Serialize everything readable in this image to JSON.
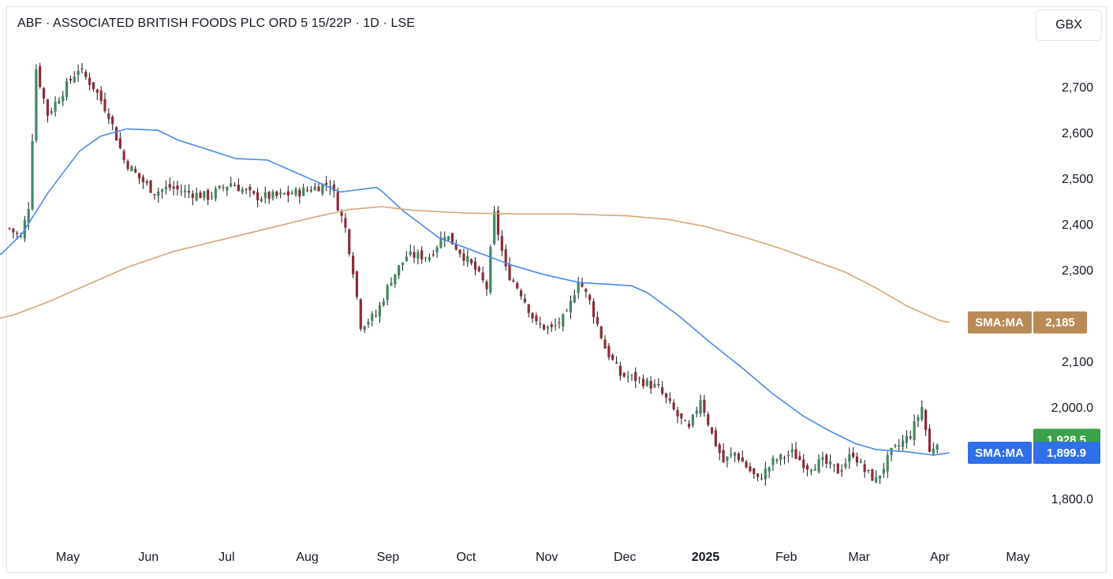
{
  "header": {
    "title": "ABF · ASSOCIATED BRITISH FOODS PLC ORD 5 15/22P · 1D · LSE",
    "currency_button": "GBX"
  },
  "colors": {
    "up": "#3f8a5f",
    "down": "#8b2d36",
    "wick": "#131722",
    "sma_fast": "#4a8af0",
    "sma_slow": "#d4a774",
    "last_price": "#3aa24a",
    "sma_fast_badge": "#2f6fe8",
    "sma_slow_badge": "#b98a56"
  },
  "badges": {
    "sma_slow": {
      "label": "SMA:MA",
      "value": "2,185"
    },
    "last_price": {
      "value": "1,928.5"
    },
    "sma_fast": {
      "label": "SMA:MA",
      "value": "1,899.9"
    }
  },
  "chart_data": {
    "type": "candlestick",
    "title": "ABF · ASSOCIATED BRITISH FOODS PLC ORD 5 15/22P · 1D · LSE",
    "currency": "GBX",
    "ylim": [
      1715,
      2815
    ],
    "y_ticks": [
      {
        "value": 1800,
        "label": "1,800.0"
      },
      {
        "value": 1900,
        "label": ""
      },
      {
        "value": 2000,
        "label": "2,000.0"
      },
      {
        "value": 2100,
        "label": "2,100"
      },
      {
        "value": 2200,
        "label": ""
      },
      {
        "value": 2300,
        "label": "2,300"
      },
      {
        "value": 2400,
        "label": "2,400"
      },
      {
        "value": 2500,
        "label": "2,500"
      },
      {
        "value": 2600,
        "label": "2,600"
      },
      {
        "value": 2700,
        "label": "2,700"
      }
    ],
    "x_ticks": [
      {
        "label": "May",
        "t": 15,
        "bold": false
      },
      {
        "label": "Jun",
        "t": 46,
        "bold": false
      },
      {
        "label": "Jul",
        "t": 76,
        "bold": false
      },
      {
        "label": "Aug",
        "t": 107,
        "bold": false
      },
      {
        "label": "Sep",
        "t": 138,
        "bold": false
      },
      {
        "label": "Oct",
        "t": 168,
        "bold": false
      },
      {
        "label": "Nov",
        "t": 199,
        "bold": false
      },
      {
        "label": "Dec",
        "t": 229,
        "bold": false
      },
      {
        "label": "2025",
        "t": 260,
        "bold": true
      },
      {
        "label": "Feb",
        "t": 291,
        "bold": false
      },
      {
        "label": "Mar",
        "t": 319,
        "bold": false
      },
      {
        "label": "Apr",
        "t": 350,
        "bold": false
      },
      {
        "label": "May",
        "t": 380,
        "bold": false
      }
    ],
    "last_price": 1928.5,
    "series": [
      {
        "name": "SMA:MA",
        "style": "fast",
        "last": 1899.9,
        "points": [
          [
            -16,
            2320
          ],
          [
            -8,
            2335
          ],
          [
            0,
            2380
          ],
          [
            10,
            2470
          ],
          [
            22,
            2560
          ],
          [
            30,
            2592
          ],
          [
            40,
            2608
          ],
          [
            52,
            2605
          ],
          [
            60,
            2583
          ],
          [
            70,
            2565
          ],
          [
            82,
            2543
          ],
          [
            94,
            2540
          ],
          [
            100,
            2525
          ],
          [
            110,
            2500
          ],
          [
            122,
            2470
          ],
          [
            136,
            2480
          ],
          [
            138,
            2472
          ],
          [
            146,
            2430
          ],
          [
            160,
            2370
          ],
          [
            174,
            2340
          ],
          [
            188,
            2310
          ],
          [
            200,
            2290
          ],
          [
            214,
            2272
          ],
          [
            226,
            2268
          ],
          [
            234,
            2265
          ],
          [
            240,
            2250
          ],
          [
            252,
            2200
          ],
          [
            264,
            2142
          ],
          [
            276,
            2088
          ],
          [
            288,
            2030
          ],
          [
            300,
            1980
          ],
          [
            310,
            1948
          ],
          [
            320,
            1920
          ],
          [
            328,
            1907
          ],
          [
            340,
            1902
          ],
          [
            350,
            1895
          ],
          [
            356,
            1899.9
          ]
        ]
      },
      {
        "name": "SMA:MA",
        "style": "slow",
        "last": 2185,
        "points": [
          [
            -16,
            2185
          ],
          [
            -4,
            2200
          ],
          [
            10,
            2230
          ],
          [
            26,
            2270
          ],
          [
            40,
            2305
          ],
          [
            58,
            2340
          ],
          [
            76,
            2365
          ],
          [
            94,
            2390
          ],
          [
            112,
            2415
          ],
          [
            126,
            2432
          ],
          [
            138,
            2438
          ],
          [
            150,
            2430
          ],
          [
            170,
            2424
          ],
          [
            190,
            2422
          ],
          [
            210,
            2422
          ],
          [
            232,
            2418
          ],
          [
            248,
            2410
          ],
          [
            262,
            2395
          ],
          [
            278,
            2370
          ],
          [
            292,
            2345
          ],
          [
            304,
            2320
          ],
          [
            316,
            2295
          ],
          [
            328,
            2260
          ],
          [
            340,
            2220
          ],
          [
            352,
            2190
          ],
          [
            356,
            2185
          ]
        ]
      }
    ]
  }
}
